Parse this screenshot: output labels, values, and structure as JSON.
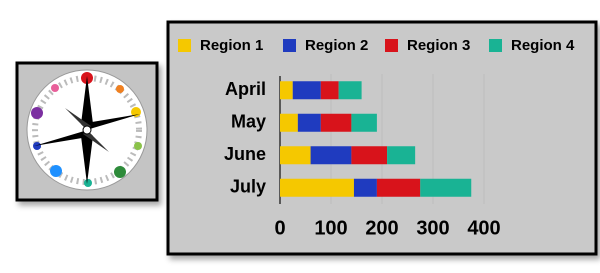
{
  "chart_data": {
    "type": "bar",
    "orientation": "horizontal",
    "stacked": true,
    "categories": [
      "April",
      "May",
      "June",
      "July"
    ],
    "series": [
      {
        "name": "Region 1",
        "color": "#f5c800",
        "values": [
          25,
          35,
          60,
          145
        ]
      },
      {
        "name": "Region 2",
        "color": "#1f3bbf",
        "values": [
          55,
          45,
          80,
          45
        ]
      },
      {
        "name": "Region 3",
        "color": "#d8131b",
        "values": [
          35,
          60,
          70,
          85
        ]
      },
      {
        "name": "Region 4",
        "color": "#19b394",
        "values": [
          45,
          50,
          55,
          100
        ]
      }
    ],
    "xlim": [
      0,
      600
    ],
    "xticks": [
      0,
      100,
      200,
      300,
      400
    ],
    "grid": true,
    "legend": "top"
  }
}
